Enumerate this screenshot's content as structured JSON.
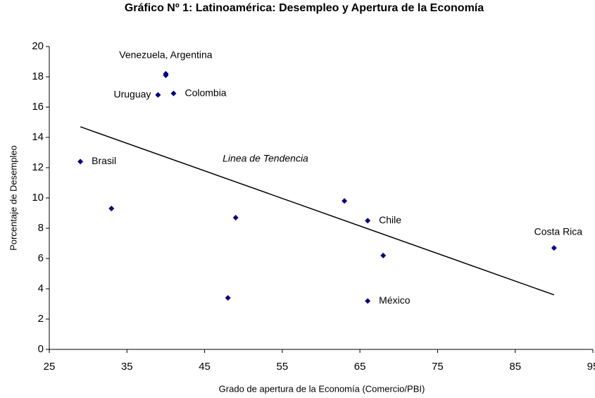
{
  "chart_data": {
    "type": "scatter",
    "title": "Gráfico Nº 1: Latinoamérica: Desempleo y Apertura de la Economía",
    "x_label": "Grado de apertura de la Economía (Comercio/PBI)",
    "y_label": "Porcentaje de Desempleo",
    "series": [
      {
        "color": "#000080",
        "x": [
          40,
          40,
          39,
          41,
          29,
          33,
          49,
          48,
          63,
          66,
          68,
          66,
          90
        ],
        "values": [
          18.2,
          18.1,
          16.8,
          16.9,
          12.4,
          9.3,
          8.7,
          3.4,
          9.8,
          8.5,
          6.2,
          3.2,
          6.7
        ],
        "labels": [
          "Venezuela, Argentina",
          null,
          "Uruguay",
          "Colombia",
          "Brasil",
          null,
          null,
          null,
          null,
          "Chile",
          null,
          "México",
          "Costa Rica"
        ]
      }
    ],
    "trendline": {
      "name": "Linea de Tendencia",
      "color": "#000000",
      "x": [
        29,
        90
      ],
      "values": [
        14.7,
        3.6
      ]
    },
    "xlim": [
      25,
      95
    ],
    "xticks": [
      25,
      35,
      45,
      55,
      65,
      75,
      85,
      95
    ],
    "ylim": [
      0,
      20
    ],
    "yticks": [
      0,
      2,
      4,
      6,
      8,
      10,
      12,
      14,
      16,
      18,
      20
    ],
    "grid": false
  }
}
